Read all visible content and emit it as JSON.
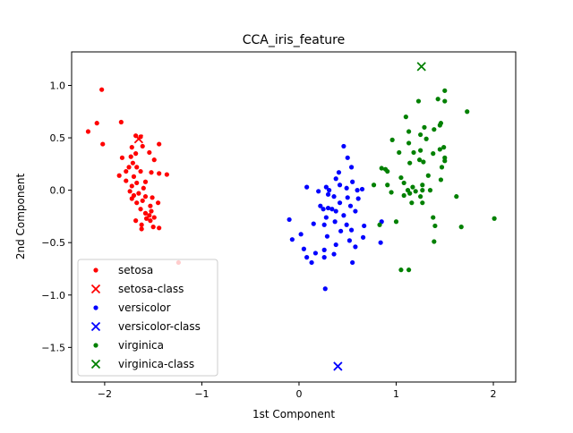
{
  "chart_data": {
    "type": "scatter",
    "title": "CCA_iris_feature",
    "xlabel": "1st Component",
    "ylabel": "2nd Component",
    "xlim": [
      -2.34,
      2.23
    ],
    "ylim": [
      -1.83,
      1.32
    ],
    "xticks": [
      -2,
      -1,
      0,
      1,
      2
    ],
    "xtick_labels": [
      "−2",
      "−1",
      "0",
      "1",
      "2"
    ],
    "yticks": [
      -1.5,
      -1.0,
      -0.5,
      0.0,
      0.5,
      1.0
    ],
    "ytick_labels": [
      "−1.5",
      "−1.0",
      "−0.5",
      "0.0",
      "0.5",
      "1.0"
    ],
    "grid": false,
    "legend_position": "lower-left",
    "series": [
      {
        "name": "setosa",
        "marker": "dot",
        "color": "#ff0000",
        "points": [
          [
            -2.03,
            0.96
          ],
          [
            -1.83,
            0.65
          ],
          [
            -2.08,
            0.64
          ],
          [
            -2.17,
            0.56
          ],
          [
            -1.68,
            0.52
          ],
          [
            -1.63,
            0.51
          ],
          [
            -1.72,
            0.41
          ],
          [
            -1.61,
            0.42
          ],
          [
            -1.44,
            0.44
          ],
          [
            -2.02,
            0.44
          ],
          [
            -1.68,
            0.35
          ],
          [
            -1.54,
            0.36
          ],
          [
            -1.73,
            0.32
          ],
          [
            -1.82,
            0.31
          ],
          [
            -1.49,
            0.29
          ],
          [
            -1.71,
            0.26
          ],
          [
            -1.75,
            0.22
          ],
          [
            -1.67,
            0.22
          ],
          [
            -1.63,
            0.18
          ],
          [
            -1.78,
            0.18
          ],
          [
            -1.52,
            0.17
          ],
          [
            -1.44,
            0.16
          ],
          [
            -1.36,
            0.15
          ],
          [
            -1.85,
            0.14
          ],
          [
            -1.7,
            0.13
          ],
          [
            -1.78,
            0.09
          ],
          [
            -1.58,
            0.08
          ],
          [
            -1.67,
            0.07
          ],
          [
            -1.72,
            0.04
          ],
          [
            -1.6,
            0.02
          ],
          [
            -1.74,
            -0.01
          ],
          [
            -1.65,
            -0.03
          ],
          [
            -1.7,
            -0.05
          ],
          [
            -1.58,
            -0.06
          ],
          [
            -1.51,
            -0.07
          ],
          [
            -1.72,
            -0.08
          ],
          [
            -1.61,
            -0.1
          ],
          [
            -1.67,
            -0.12
          ],
          [
            -1.45,
            -0.12
          ],
          [
            -1.53,
            -0.15
          ],
          [
            -1.63,
            -0.18
          ],
          [
            -1.52,
            -0.2
          ],
          [
            -1.58,
            -0.22
          ],
          [
            -1.54,
            -0.24
          ],
          [
            -1.49,
            -0.26
          ],
          [
            -1.57,
            -0.27
          ],
          [
            -1.53,
            -0.29
          ],
          [
            -1.68,
            -0.29
          ],
          [
            -1.62,
            -0.33
          ],
          [
            -1.62,
            -0.37
          ],
          [
            -1.5,
            -0.35
          ],
          [
            -1.44,
            -0.36
          ],
          [
            -1.24,
            -0.69
          ]
        ]
      },
      {
        "name": "setosa-class",
        "marker": "x",
        "color": "#ff0000",
        "points": [
          [
            -1.65,
            0.49
          ]
        ]
      },
      {
        "name": "versicolor",
        "marker": "dot",
        "color": "#0000ff",
        "points": [
          [
            0.46,
            0.42
          ],
          [
            0.5,
            0.31
          ],
          [
            0.41,
            0.17
          ],
          [
            0.54,
            0.22
          ],
          [
            0.38,
            0.11
          ],
          [
            0.55,
            0.08
          ],
          [
            0.42,
            0.05
          ],
          [
            0.65,
            0.01
          ],
          [
            0.6,
            0.0
          ],
          [
            0.28,
            0.03
          ],
          [
            0.31,
            0.0
          ],
          [
            0.49,
            0.02
          ],
          [
            0.08,
            0.03
          ],
          [
            0.2,
            -0.01
          ],
          [
            0.3,
            -0.04
          ],
          [
            0.36,
            -0.06
          ],
          [
            0.5,
            -0.07
          ],
          [
            0.61,
            -0.08
          ],
          [
            0.42,
            -0.12
          ],
          [
            0.22,
            -0.15
          ],
          [
            0.3,
            -0.17
          ],
          [
            0.25,
            -0.18
          ],
          [
            0.38,
            -0.2
          ],
          [
            0.34,
            -0.18
          ],
          [
            0.53,
            -0.15
          ],
          [
            0.58,
            -0.2
          ],
          [
            0.46,
            -0.24
          ],
          [
            0.28,
            -0.26
          ],
          [
            -0.1,
            -0.28
          ],
          [
            0.37,
            -0.3
          ],
          [
            0.49,
            -0.33
          ],
          [
            0.15,
            -0.32
          ],
          [
            0.26,
            -0.33
          ],
          [
            0.54,
            -0.38
          ],
          [
            0.67,
            -0.34
          ],
          [
            0.85,
            -0.3
          ],
          [
            0.43,
            -0.39
          ],
          [
            0.66,
            -0.45
          ],
          [
            0.29,
            -0.44
          ],
          [
            0.02,
            -0.42
          ],
          [
            -0.07,
            -0.47
          ],
          [
            0.52,
            -0.48
          ],
          [
            0.84,
            -0.5
          ],
          [
            0.38,
            -0.52
          ],
          [
            0.58,
            -0.54
          ],
          [
            0.05,
            -0.56
          ],
          [
            0.17,
            -0.6
          ],
          [
            0.26,
            -0.57
          ],
          [
            0.36,
            -0.61
          ],
          [
            0.26,
            -0.64
          ],
          [
            0.08,
            -0.64
          ],
          [
            0.13,
            -0.69
          ],
          [
            0.55,
            -0.69
          ],
          [
            0.27,
            -0.94
          ]
        ]
      },
      {
        "name": "versicolor-class",
        "marker": "x",
        "color": "#0000ff",
        "points": [
          [
            0.4,
            -1.68
          ]
        ]
      },
      {
        "name": "virginica",
        "marker": "dot",
        "color": "#008000",
        "points": [
          [
            1.5,
            0.95
          ],
          [
            1.43,
            0.87
          ],
          [
            1.5,
            0.85
          ],
          [
            1.23,
            0.85
          ],
          [
            1.1,
            0.7
          ],
          [
            1.73,
            0.75
          ],
          [
            1.46,
            0.64
          ],
          [
            1.45,
            0.62
          ],
          [
            1.29,
            0.6
          ],
          [
            1.39,
            0.58
          ],
          [
            1.13,
            0.56
          ],
          [
            1.25,
            0.53
          ],
          [
            0.96,
            0.48
          ],
          [
            1.31,
            0.49
          ],
          [
            1.13,
            0.45
          ],
          [
            1.49,
            0.41
          ],
          [
            1.45,
            0.39
          ],
          [
            1.25,
            0.38
          ],
          [
            1.03,
            0.36
          ],
          [
            1.18,
            0.36
          ],
          [
            1.38,
            0.35
          ],
          [
            1.5,
            0.31
          ],
          [
            1.5,
            0.28
          ],
          [
            1.24,
            0.29
          ],
          [
            1.28,
            0.27
          ],
          [
            1.14,
            0.26
          ],
          [
            0.89,
            0.2
          ],
          [
            1.47,
            0.22
          ],
          [
            0.85,
            0.21
          ],
          [
            0.91,
            0.18
          ],
          [
            1.33,
            0.14
          ],
          [
            1.05,
            0.12
          ],
          [
            1.46,
            0.1
          ],
          [
            1.08,
            0.07
          ],
          [
            1.27,
            0.05
          ],
          [
            0.91,
            0.05
          ],
          [
            1.17,
            0.03
          ],
          [
            0.77,
            0.05
          ],
          [
            1.12,
            0.0
          ],
          [
            1.2,
            -0.01
          ],
          [
            1.14,
            -0.03
          ],
          [
            1.27,
            0.0
          ],
          [
            1.35,
            0.0
          ],
          [
            0.95,
            -0.02
          ],
          [
            1.08,
            -0.05
          ],
          [
            1.25,
            -0.06
          ],
          [
            1.62,
            -0.06
          ],
          [
            1.27,
            -0.12
          ],
          [
            1.16,
            -0.12
          ],
          [
            1.0,
            -0.3
          ],
          [
            2.01,
            -0.27
          ],
          [
            1.38,
            -0.26
          ],
          [
            1.4,
            -0.34
          ],
          [
            1.67,
            -0.35
          ],
          [
            0.83,
            -0.33
          ],
          [
            1.39,
            -0.49
          ],
          [
            1.05,
            -0.76
          ],
          [
            1.13,
            -0.76
          ]
        ]
      },
      {
        "name": "virginica-class",
        "marker": "x",
        "color": "#008000",
        "points": [
          [
            1.26,
            1.18
          ]
        ]
      }
    ]
  }
}
